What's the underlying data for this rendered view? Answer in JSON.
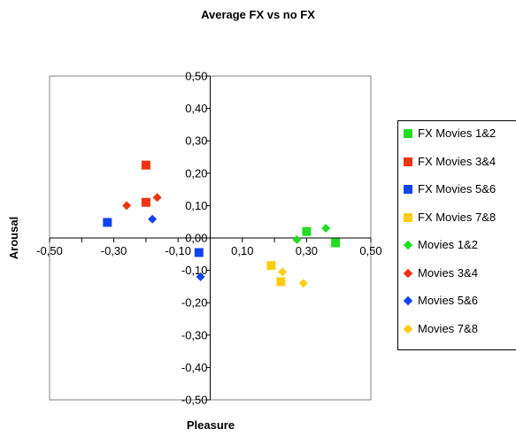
{
  "chart_data": {
    "type": "scatter",
    "title": "Average FX vs no FX",
    "xlabel": "Pleasure",
    "ylabel": "Arousal",
    "xlim": [
      -0.5,
      0.5
    ],
    "ylim": [
      -0.5,
      0.5
    ],
    "x_ticks": [
      "-0,50",
      "-0,30",
      "-0,10",
      "0,10",
      "0,30",
      "0,50"
    ],
    "x_tick_values": [
      -0.5,
      -0.3,
      -0.1,
      0.1,
      0.3,
      0.5
    ],
    "y_ticks": [
      "0,50",
      "0,40",
      "0,30",
      "0,20",
      "0,10",
      "0,00",
      "-0,10",
      "-0,20",
      "-0,30",
      "-0,40",
      "-0,50"
    ],
    "y_tick_values": [
      0.5,
      0.4,
      0.3,
      0.2,
      0.1,
      0.0,
      -0.1,
      -0.2,
      -0.3,
      -0.4,
      -0.5
    ],
    "grid": false,
    "legend_position": "right",
    "series": [
      {
        "name": "FX Movies 1&2",
        "marker": "square",
        "color": "#22dd22",
        "points": [
          [
            0.3,
            0.02
          ],
          [
            0.39,
            -0.015
          ]
        ]
      },
      {
        "name": "FX Movies 3&4",
        "marker": "square",
        "color": "#ee3311",
        "points": [
          [
            -0.2,
            0.225
          ],
          [
            -0.2,
            0.11
          ]
        ]
      },
      {
        "name": "FX Movies 5&6",
        "marker": "square",
        "color": "#1144ee",
        "points": [
          [
            -0.32,
            0.048
          ],
          [
            -0.035,
            -0.045
          ]
        ]
      },
      {
        "name": "FX Movies 7&8",
        "marker": "square",
        "color": "#ffcc11",
        "points": [
          [
            0.19,
            -0.085
          ],
          [
            0.22,
            -0.135
          ]
        ]
      },
      {
        "name": "Movies 1&2",
        "marker": "diamond",
        "color": "#22dd22",
        "points": [
          [
            0.27,
            -0.005
          ],
          [
            0.36,
            0.03
          ]
        ]
      },
      {
        "name": "Movies 3&4",
        "marker": "diamond",
        "color": "#ee3311",
        "points": [
          [
            -0.26,
            0.1
          ],
          [
            -0.165,
            0.125
          ]
        ]
      },
      {
        "name": "Movies 5&6",
        "marker": "diamond",
        "color": "#1144ee",
        "points": [
          [
            -0.18,
            0.058
          ],
          [
            -0.03,
            -0.12
          ]
        ]
      },
      {
        "name": "Movies 7&8",
        "marker": "diamond",
        "color": "#ffcc11",
        "points": [
          [
            0.225,
            -0.105
          ],
          [
            0.29,
            -0.14
          ]
        ]
      }
    ]
  }
}
